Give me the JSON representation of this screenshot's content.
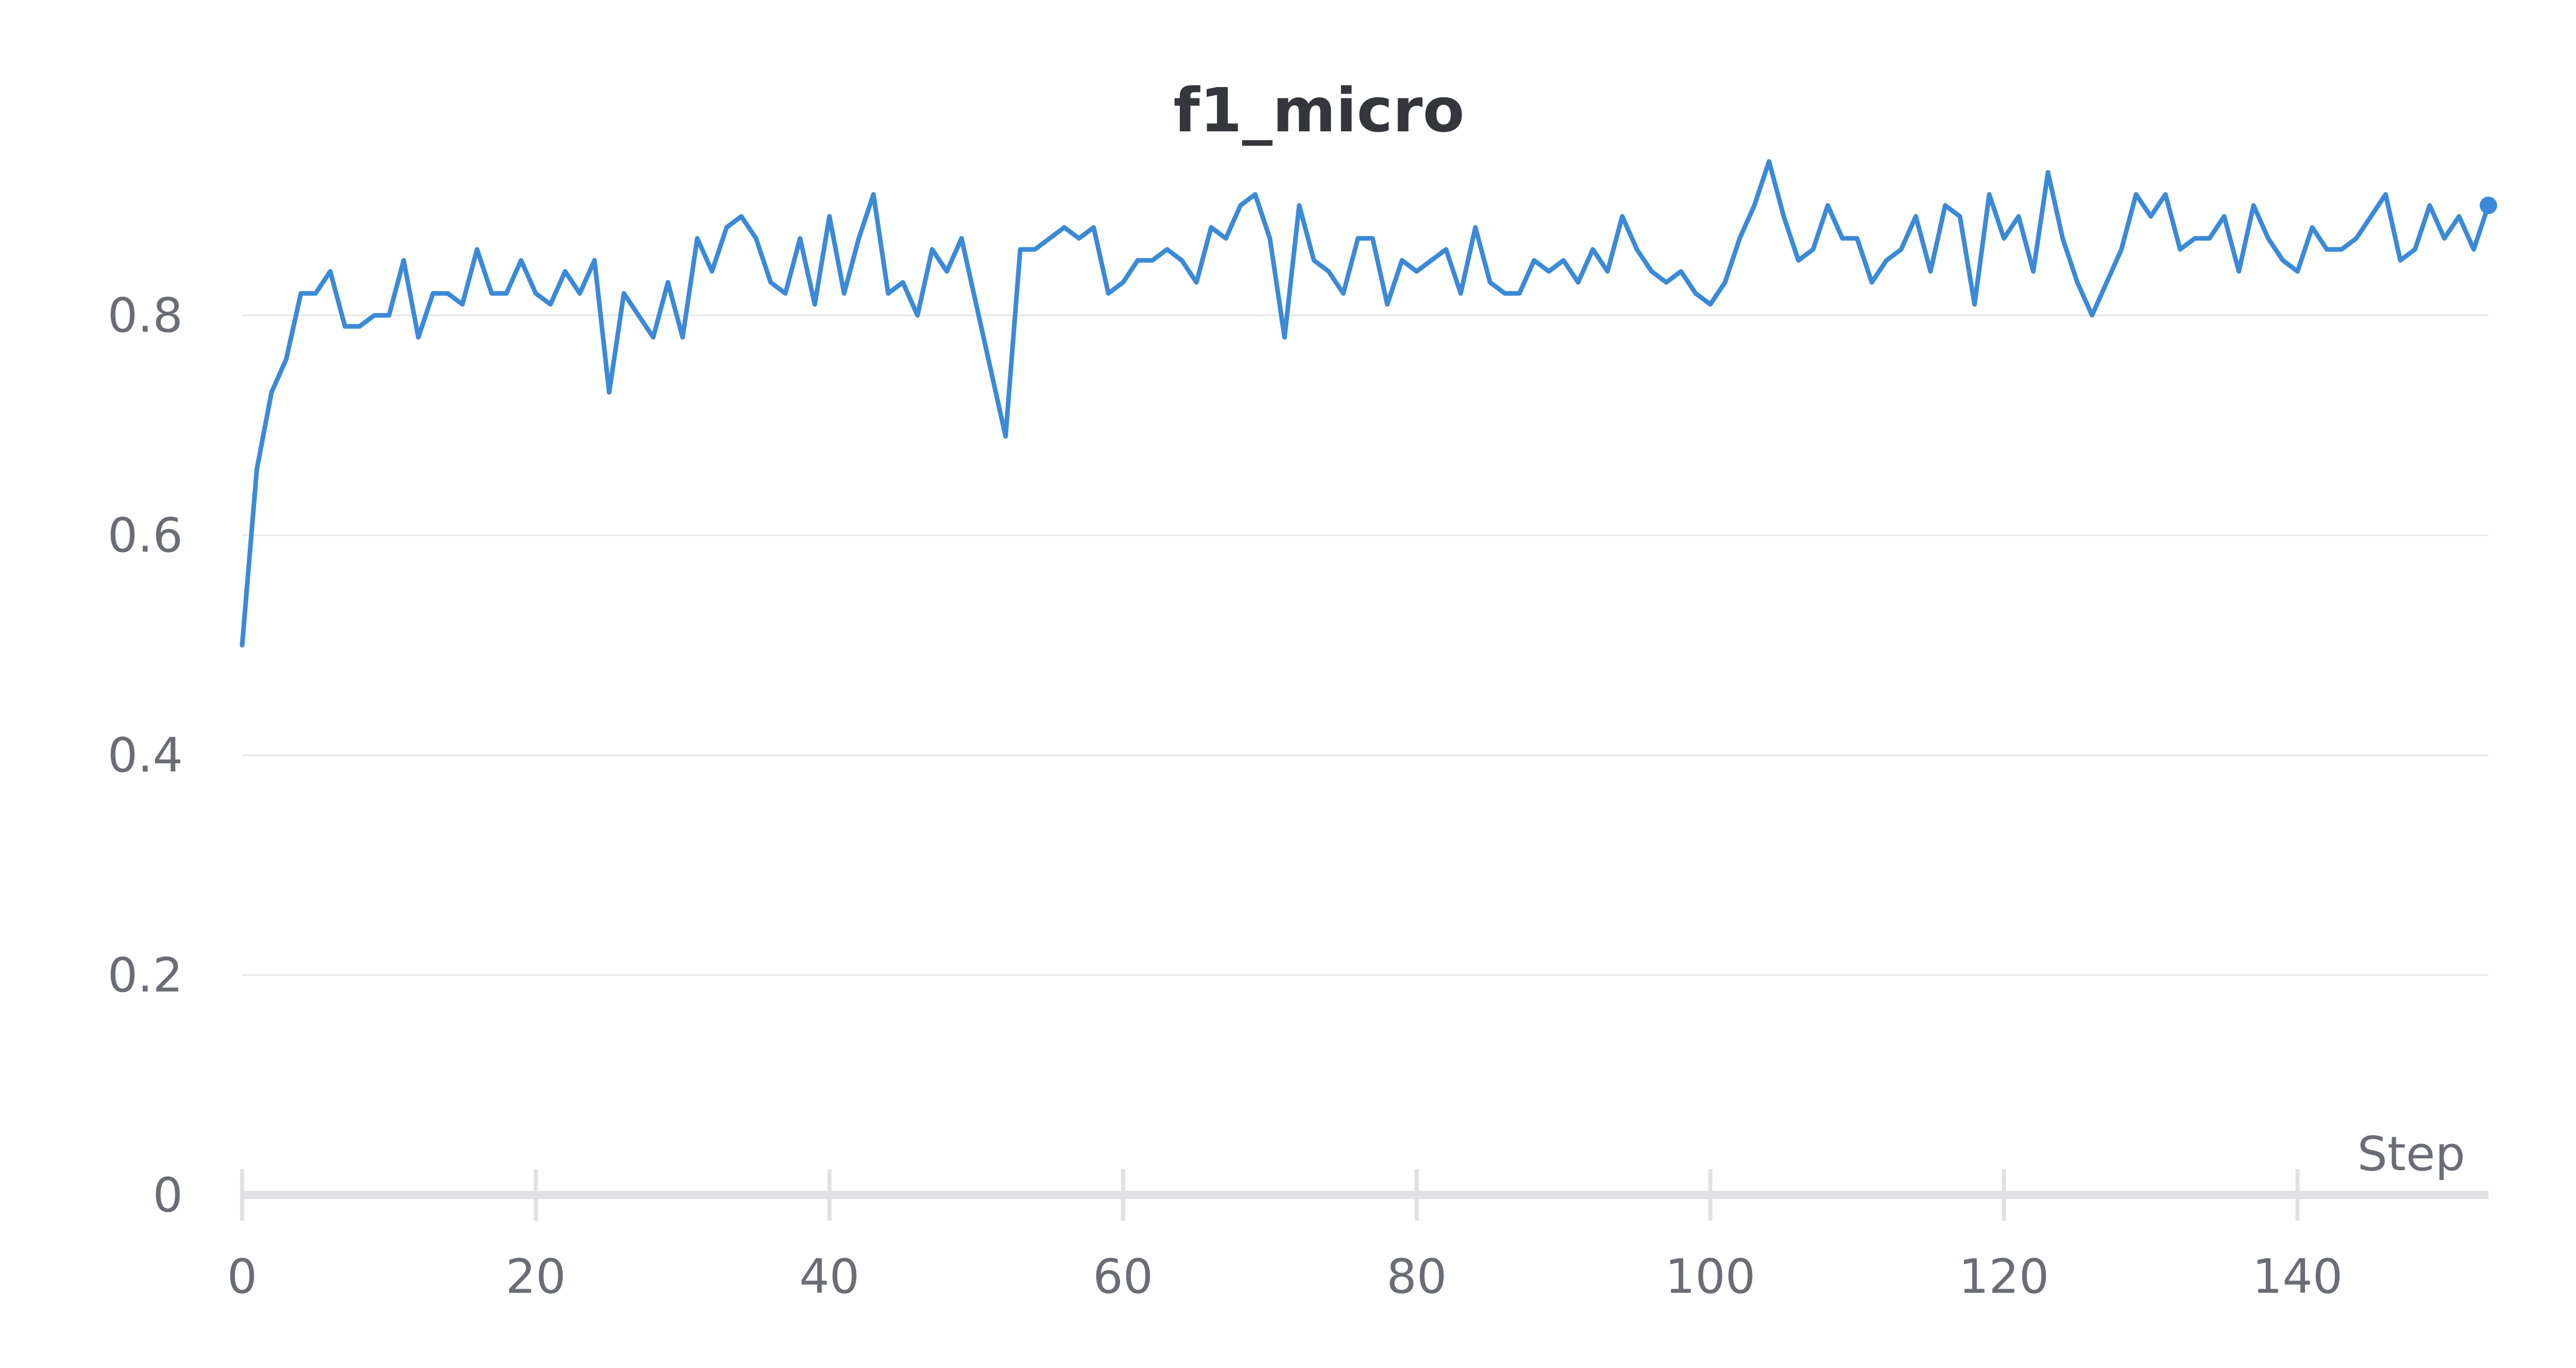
{
  "chart_data": {
    "type": "line",
    "title": "f1_micro",
    "xlabel": "Step",
    "ylabel": "",
    "xlim": [
      0,
      153
    ],
    "ylim": [
      0,
      0.98
    ],
    "x_ticks": [
      0,
      20,
      40,
      60,
      80,
      100,
      120,
      140
    ],
    "y_ticks": [
      0,
      0.2,
      0.4,
      0.6,
      0.8
    ],
    "y_tick_labels": [
      "0",
      "0.2",
      "0.4",
      "0.6",
      "0.8"
    ],
    "grid": true,
    "line_color": "#3b8ad8",
    "series": [
      {
        "x": [
          0,
          1,
          2,
          3,
          4,
          5,
          6,
          7,
          8,
          9,
          10,
          11,
          12,
          13,
          14,
          15,
          16,
          17,
          18,
          19,
          20,
          21,
          22,
          23,
          24,
          25,
          26,
          27,
          28,
          29,
          30,
          31,
          32,
          33,
          34,
          35,
          36,
          37,
          38,
          39,
          40,
          41,
          42,
          43,
          44,
          45,
          46,
          47,
          48,
          49,
          50,
          51,
          52,
          53,
          54,
          55,
          56,
          57,
          58,
          59,
          60,
          61,
          62,
          63,
          64,
          65,
          66,
          67,
          68,
          69,
          70,
          71,
          72,
          73,
          74,
          75,
          76,
          77,
          78,
          79,
          80,
          81,
          82,
          83,
          84,
          85,
          86,
          87,
          88,
          89,
          90,
          91,
          92,
          93,
          94,
          95,
          96,
          97,
          98,
          99,
          100,
          101,
          102,
          103,
          104,
          105,
          106,
          107,
          108,
          109,
          110,
          111,
          112,
          113,
          114,
          115,
          116,
          117,
          118,
          119,
          120,
          121,
          122,
          123,
          124,
          125,
          126,
          127,
          128,
          129,
          130,
          131,
          132,
          133,
          134,
          135,
          136,
          137,
          138,
          139,
          140,
          141,
          142,
          143,
          144,
          145,
          146,
          147,
          148,
          149,
          150,
          151,
          152,
          153
        ],
        "values": [
          0.5,
          0.66,
          0.73,
          0.76,
          0.82,
          0.82,
          0.84,
          0.79,
          0.79,
          0.8,
          0.8,
          0.85,
          0.78,
          0.82,
          0.82,
          0.81,
          0.86,
          0.82,
          0.82,
          0.85,
          0.82,
          0.81,
          0.84,
          0.82,
          0.85,
          0.73,
          0.82,
          0.8,
          0.78,
          0.83,
          0.78,
          0.87,
          0.84,
          0.88,
          0.89,
          0.87,
          0.83,
          0.82,
          0.87,
          0.81,
          0.89,
          0.82,
          0.87,
          0.91,
          0.82,
          0.83,
          0.8,
          0.86,
          0.84,
          0.87,
          0.81,
          0.75,
          0.69,
          0.86,
          0.86,
          0.87,
          0.88,
          0.87,
          0.88,
          0.82,
          0.83,
          0.85,
          0.85,
          0.86,
          0.85,
          0.83,
          0.88,
          0.87,
          0.9,
          0.91,
          0.87,
          0.78,
          0.9,
          0.85,
          0.84,
          0.82,
          0.87,
          0.87,
          0.81,
          0.85,
          0.84,
          0.85,
          0.86,
          0.82,
          0.88,
          0.83,
          0.82,
          0.82,
          0.85,
          0.84,
          0.85,
          0.83,
          0.86,
          0.84,
          0.89,
          0.86,
          0.84,
          0.83,
          0.84,
          0.82,
          0.81,
          0.83,
          0.87,
          0.9,
          0.94,
          0.89,
          0.85,
          0.86,
          0.9,
          0.87,
          0.87,
          0.83,
          0.85,
          0.86,
          0.89,
          0.84,
          0.9,
          0.89,
          0.81,
          0.91,
          0.87,
          0.89,
          0.84,
          0.93,
          0.87,
          0.83,
          0.8,
          0.83,
          0.86,
          0.91,
          0.89,
          0.91,
          0.86,
          0.87,
          0.87,
          0.89,
          0.84,
          0.9,
          0.87,
          0.85,
          0.84,
          0.88,
          0.86,
          0.86,
          0.87,
          0.89,
          0.91,
          0.85,
          0.86,
          0.9,
          0.87,
          0.89,
          0.86,
          0.9
        ]
      }
    ]
  }
}
